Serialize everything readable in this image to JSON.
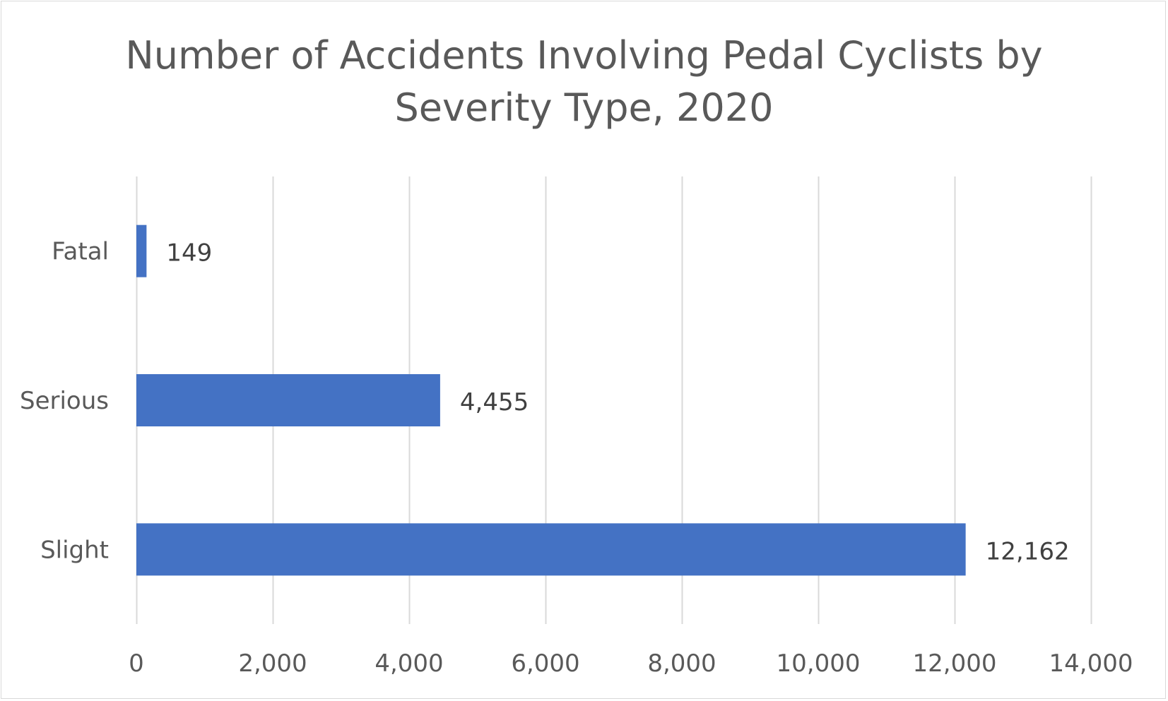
{
  "chart_data": {
    "type": "bar",
    "orientation": "horizontal",
    "title": "Number of Accidents Involving Pedal Cyclists by Severity Type, 2020",
    "title_lines": [
      "Number of Accidents Involving Pedal Cyclists by",
      "Severity Type, 2020"
    ],
    "categories": [
      "Fatal",
      "Serious",
      "Slight"
    ],
    "values": [
      149,
      4455,
      12162
    ],
    "data_labels": [
      "149",
      "4,455",
      "12,162"
    ],
    "xlim": [
      0,
      14000
    ],
    "x_ticks": [
      0,
      2000,
      4000,
      6000,
      8000,
      10000,
      12000,
      14000
    ],
    "x_tick_labels": [
      "0",
      "2,000",
      "4,000",
      "6,000",
      "8,000",
      "10,000",
      "12,000",
      "14,000"
    ],
    "xlabel": "",
    "ylabel": "",
    "grid": "vertical",
    "legend": "none",
    "bar_color": "#4472c4",
    "text_color": "#595959",
    "label_color": "#404040",
    "grid_color": "#d9d9d9"
  }
}
